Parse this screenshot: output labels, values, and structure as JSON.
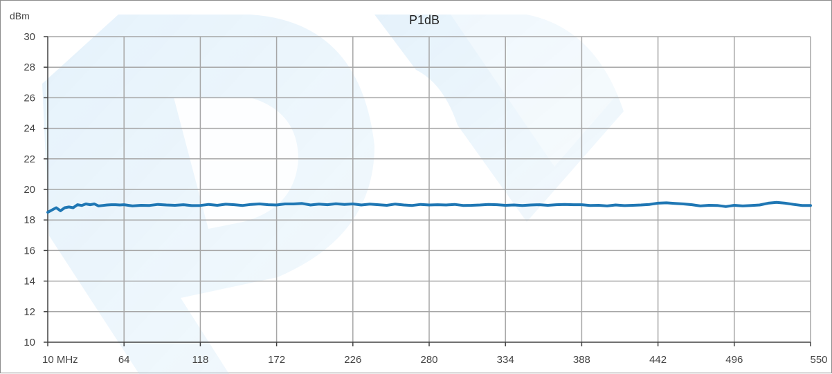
{
  "chart_data": {
    "type": "line",
    "title": "P1dB",
    "ylabel": "dBm",
    "xlabel": "",
    "x_tick_labels": [
      "10  MHz",
      "64",
      "118",
      "172",
      "226",
      "280",
      "334",
      "388",
      "442",
      "496",
      "550"
    ],
    "x_ticks": [
      10,
      64,
      118,
      172,
      226,
      280,
      334,
      388,
      442,
      496,
      550
    ],
    "y_tick_labels": [
      "10",
      "12",
      "14",
      "16",
      "18",
      "20",
      "22",
      "24",
      "26",
      "28",
      "30"
    ],
    "y_ticks": [
      10,
      12,
      14,
      16,
      18,
      20,
      22,
      24,
      26,
      28,
      30
    ],
    "xlim": [
      10,
      550
    ],
    "ylim": [
      10,
      30
    ],
    "grid": true,
    "legend": "none",
    "series": [
      {
        "color": "#1f77b4",
        "x": [
          10,
          13,
          16,
          19,
          22,
          25,
          28,
          31,
          34,
          37,
          40,
          43,
          46,
          49,
          52,
          55,
          58,
          61,
          64,
          70,
          76,
          82,
          88,
          94,
          100,
          106,
          112,
          118,
          124,
          130,
          136,
          142,
          148,
          154,
          160,
          166,
          172,
          178,
          184,
          190,
          196,
          202,
          208,
          214,
          220,
          226,
          232,
          238,
          244,
          250,
          256,
          262,
          268,
          274,
          280,
          286,
          292,
          298,
          304,
          310,
          316,
          322,
          328,
          334,
          340,
          346,
          352,
          358,
          364,
          370,
          376,
          382,
          388,
          394,
          400,
          406,
          412,
          418,
          424,
          430,
          436,
          442,
          448,
          454,
          460,
          466,
          472,
          478,
          484,
          490,
          496,
          502,
          508,
          514,
          520,
          526,
          532,
          538,
          544,
          550
        ],
        "values": [
          18.5,
          18.65,
          18.8,
          18.6,
          18.8,
          18.85,
          18.8,
          19.0,
          18.95,
          19.05,
          19.0,
          19.05,
          18.92,
          18.95,
          18.98,
          19.0,
          19.0,
          18.98,
          19.0,
          18.92,
          18.96,
          18.95,
          19.02,
          18.98,
          18.96,
          19.0,
          18.94,
          18.95,
          19.02,
          18.96,
          19.03,
          19.0,
          18.95,
          19.02,
          19.05,
          19.0,
          18.98,
          19.05,
          19.05,
          19.08,
          18.98,
          19.04,
          19.0,
          19.06,
          19.02,
          19.05,
          18.98,
          19.04,
          19.0,
          18.96,
          19.04,
          18.98,
          18.95,
          19.02,
          18.98,
          19.0,
          18.98,
          19.02,
          18.95,
          18.96,
          18.98,
          19.02,
          19.0,
          18.96,
          18.98,
          18.95,
          18.98,
          19.0,
          18.96,
          19.0,
          19.02,
          19.0,
          19.0,
          18.95,
          18.96,
          18.92,
          18.98,
          18.94,
          18.96,
          18.98,
          19.02,
          19.1,
          19.12,
          19.08,
          19.05,
          19.0,
          18.92,
          18.96,
          18.95,
          18.88,
          18.96,
          18.92,
          18.95,
          18.98,
          19.1,
          19.15,
          19.1,
          19.02,
          18.95,
          18.95
        ]
      }
    ]
  }
}
